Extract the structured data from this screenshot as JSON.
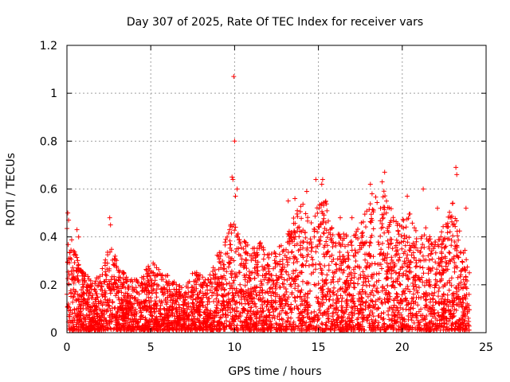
{
  "chart_data": {
    "type": "scatter",
    "title": "Day 307 of 2025, Rate Of TEC Index for receiver vars",
    "xlabel": "GPS time / hours",
    "ylabel": "ROTI / TECUs",
    "xlim": [
      0,
      25
    ],
    "ylim": [
      0,
      1.2
    ],
    "xticks": [
      0,
      5,
      10,
      15,
      20,
      25
    ],
    "yticks": [
      0,
      0.2,
      0.4,
      0.6,
      0.8,
      1,
      1.2
    ],
    "xtick_labels": [
      "0",
      "5",
      "10",
      "15",
      "20",
      "25"
    ],
    "ytick_labels": [
      "0",
      "0.2",
      "0.4",
      "0.6",
      "0.8",
      "1",
      "1.2"
    ],
    "grid": true,
    "marker": "plus",
    "series_color": "#ff0000",
    "data_extent_hours": [
      0,
      24
    ],
    "envelope": [
      {
        "x": 0.0,
        "y": 0.48
      },
      {
        "x": 0.5,
        "y": 0.33
      },
      {
        "x": 1.0,
        "y": 0.25
      },
      {
        "x": 1.5,
        "y": 0.22
      },
      {
        "x": 2.0,
        "y": 0.24
      },
      {
        "x": 2.5,
        "y": 0.38
      },
      {
        "x": 3.0,
        "y": 0.3
      },
      {
        "x": 3.5,
        "y": 0.24
      },
      {
        "x": 4.0,
        "y": 0.22
      },
      {
        "x": 4.5,
        "y": 0.24
      },
      {
        "x": 5.0,
        "y": 0.3
      },
      {
        "x": 5.5,
        "y": 0.27
      },
      {
        "x": 6.0,
        "y": 0.24
      },
      {
        "x": 6.5,
        "y": 0.22
      },
      {
        "x": 7.0,
        "y": 0.18
      },
      {
        "x": 7.5,
        "y": 0.26
      },
      {
        "x": 8.0,
        "y": 0.25
      },
      {
        "x": 8.5,
        "y": 0.24
      },
      {
        "x": 9.0,
        "y": 0.34
      },
      {
        "x": 9.5,
        "y": 0.4
      },
      {
        "x": 10.0,
        "y": 0.5
      },
      {
        "x": 10.5,
        "y": 0.4
      },
      {
        "x": 11.0,
        "y": 0.35
      },
      {
        "x": 11.5,
        "y": 0.38
      },
      {
        "x": 12.0,
        "y": 0.33
      },
      {
        "x": 12.5,
        "y": 0.36
      },
      {
        "x": 13.0,
        "y": 0.4
      },
      {
        "x": 13.5,
        "y": 0.48
      },
      {
        "x": 14.0,
        "y": 0.55
      },
      {
        "x": 14.5,
        "y": 0.5
      },
      {
        "x": 15.0,
        "y": 0.55
      },
      {
        "x": 15.5,
        "y": 0.55
      },
      {
        "x": 16.0,
        "y": 0.42
      },
      {
        "x": 16.5,
        "y": 0.42
      },
      {
        "x": 17.0,
        "y": 0.4
      },
      {
        "x": 17.5,
        "y": 0.45
      },
      {
        "x": 18.0,
        "y": 0.55
      },
      {
        "x": 18.5,
        "y": 0.58
      },
      {
        "x": 19.0,
        "y": 0.6
      },
      {
        "x": 19.5,
        "y": 0.48
      },
      {
        "x": 20.0,
        "y": 0.48
      },
      {
        "x": 20.5,
        "y": 0.5
      },
      {
        "x": 21.0,
        "y": 0.4
      },
      {
        "x": 21.5,
        "y": 0.45
      },
      {
        "x": 22.0,
        "y": 0.4
      },
      {
        "x": 22.5,
        "y": 0.45
      },
      {
        "x": 23.0,
        "y": 0.55
      },
      {
        "x": 23.5,
        "y": 0.4
      },
      {
        "x": 24.0,
        "y": 0.3
      }
    ],
    "outliers": [
      {
        "x": 9.95,
        "y": 1.07
      },
      {
        "x": 10.0,
        "y": 0.8
      },
      {
        "x": 9.85,
        "y": 0.65
      },
      {
        "x": 9.9,
        "y": 0.64
      },
      {
        "x": 10.15,
        "y": 0.6
      },
      {
        "x": 10.05,
        "y": 0.57
      },
      {
        "x": 0.05,
        "y": 0.5
      },
      {
        "x": 0.1,
        "y": 0.47
      },
      {
        "x": 0.6,
        "y": 0.43
      },
      {
        "x": 0.7,
        "y": 0.4
      },
      {
        "x": 2.55,
        "y": 0.48
      },
      {
        "x": 2.6,
        "y": 0.45
      },
      {
        "x": 18.95,
        "y": 0.67
      },
      {
        "x": 18.8,
        "y": 0.63
      },
      {
        "x": 18.1,
        "y": 0.62
      },
      {
        "x": 18.2,
        "y": 0.58
      },
      {
        "x": 23.2,
        "y": 0.69
      },
      {
        "x": 23.25,
        "y": 0.66
      },
      {
        "x": 23.8,
        "y": 0.52
      },
      {
        "x": 21.25,
        "y": 0.6
      },
      {
        "x": 20.3,
        "y": 0.57
      },
      {
        "x": 14.85,
        "y": 0.64
      },
      {
        "x": 15.25,
        "y": 0.64
      },
      {
        "x": 14.3,
        "y": 0.59
      },
      {
        "x": 13.2,
        "y": 0.55
      },
      {
        "x": 13.6,
        "y": 0.56
      },
      {
        "x": 15.2,
        "y": 0.62
      },
      {
        "x": 19.05,
        "y": 0.5
      },
      {
        "x": 17.0,
        "y": 0.48
      },
      {
        "x": 16.3,
        "y": 0.48
      },
      {
        "x": 22.1,
        "y": 0.52
      }
    ]
  }
}
